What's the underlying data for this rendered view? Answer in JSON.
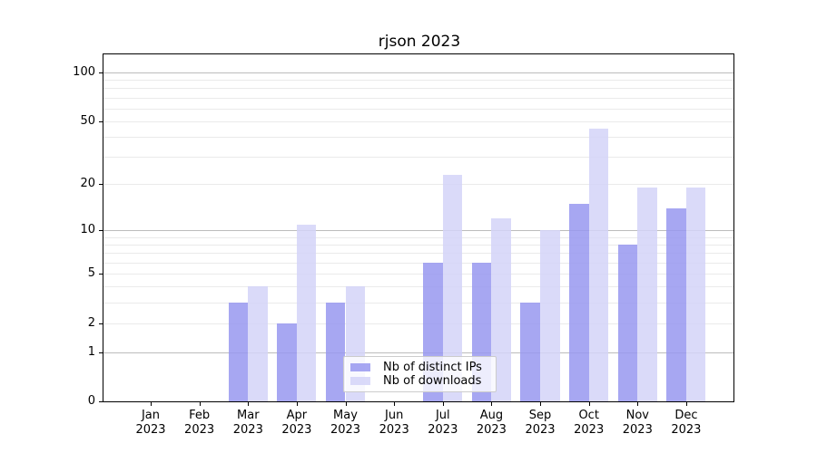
{
  "title": "rjson 2023",
  "legend": {
    "items": [
      {
        "label": "Nb of distinct IPs",
        "color": "#9898f0"
      },
      {
        "label": "Nb of downloads",
        "color": "#d4d4f8"
      }
    ]
  },
  "chart_data": {
    "type": "bar",
    "title": "rjson 2023",
    "categories": [
      "Jan 2023",
      "Feb 2023",
      "Mar 2023",
      "Apr 2023",
      "May 2023",
      "Jun 2023",
      "Jul 2023",
      "Aug 2023",
      "Sep 2023",
      "Oct 2023",
      "Nov 2023",
      "Dec 2023"
    ],
    "series": [
      {
        "name": "Nb of distinct IPs",
        "color": "#9898f0",
        "values": [
          0,
          0,
          3,
          2,
          3,
          0,
          6,
          6,
          3,
          15,
          8,
          14
        ]
      },
      {
        "name": "Nb of downloads",
        "color": "#d4d4f8",
        "values": [
          0,
          0,
          4,
          11,
          4,
          0,
          23,
          12,
          10,
          45,
          19,
          19
        ]
      }
    ],
    "xlabel": "",
    "ylabel": "",
    "yscale": "log1p",
    "ylim": [
      0,
      129
    ],
    "yticks": [
      0,
      1,
      2,
      5,
      10,
      20,
      50,
      100
    ],
    "grid": {
      "major": [
        1,
        10,
        100
      ],
      "minor": [
        2,
        3,
        4,
        5,
        6,
        7,
        8,
        9,
        20,
        30,
        40,
        50,
        60,
        70,
        80,
        90
      ],
      "major_color": "#bcbcbc",
      "minor_color": "#eaeaea"
    },
    "legend_position": "lower center",
    "background": "#ffffff",
    "spine_color": "#000000"
  }
}
